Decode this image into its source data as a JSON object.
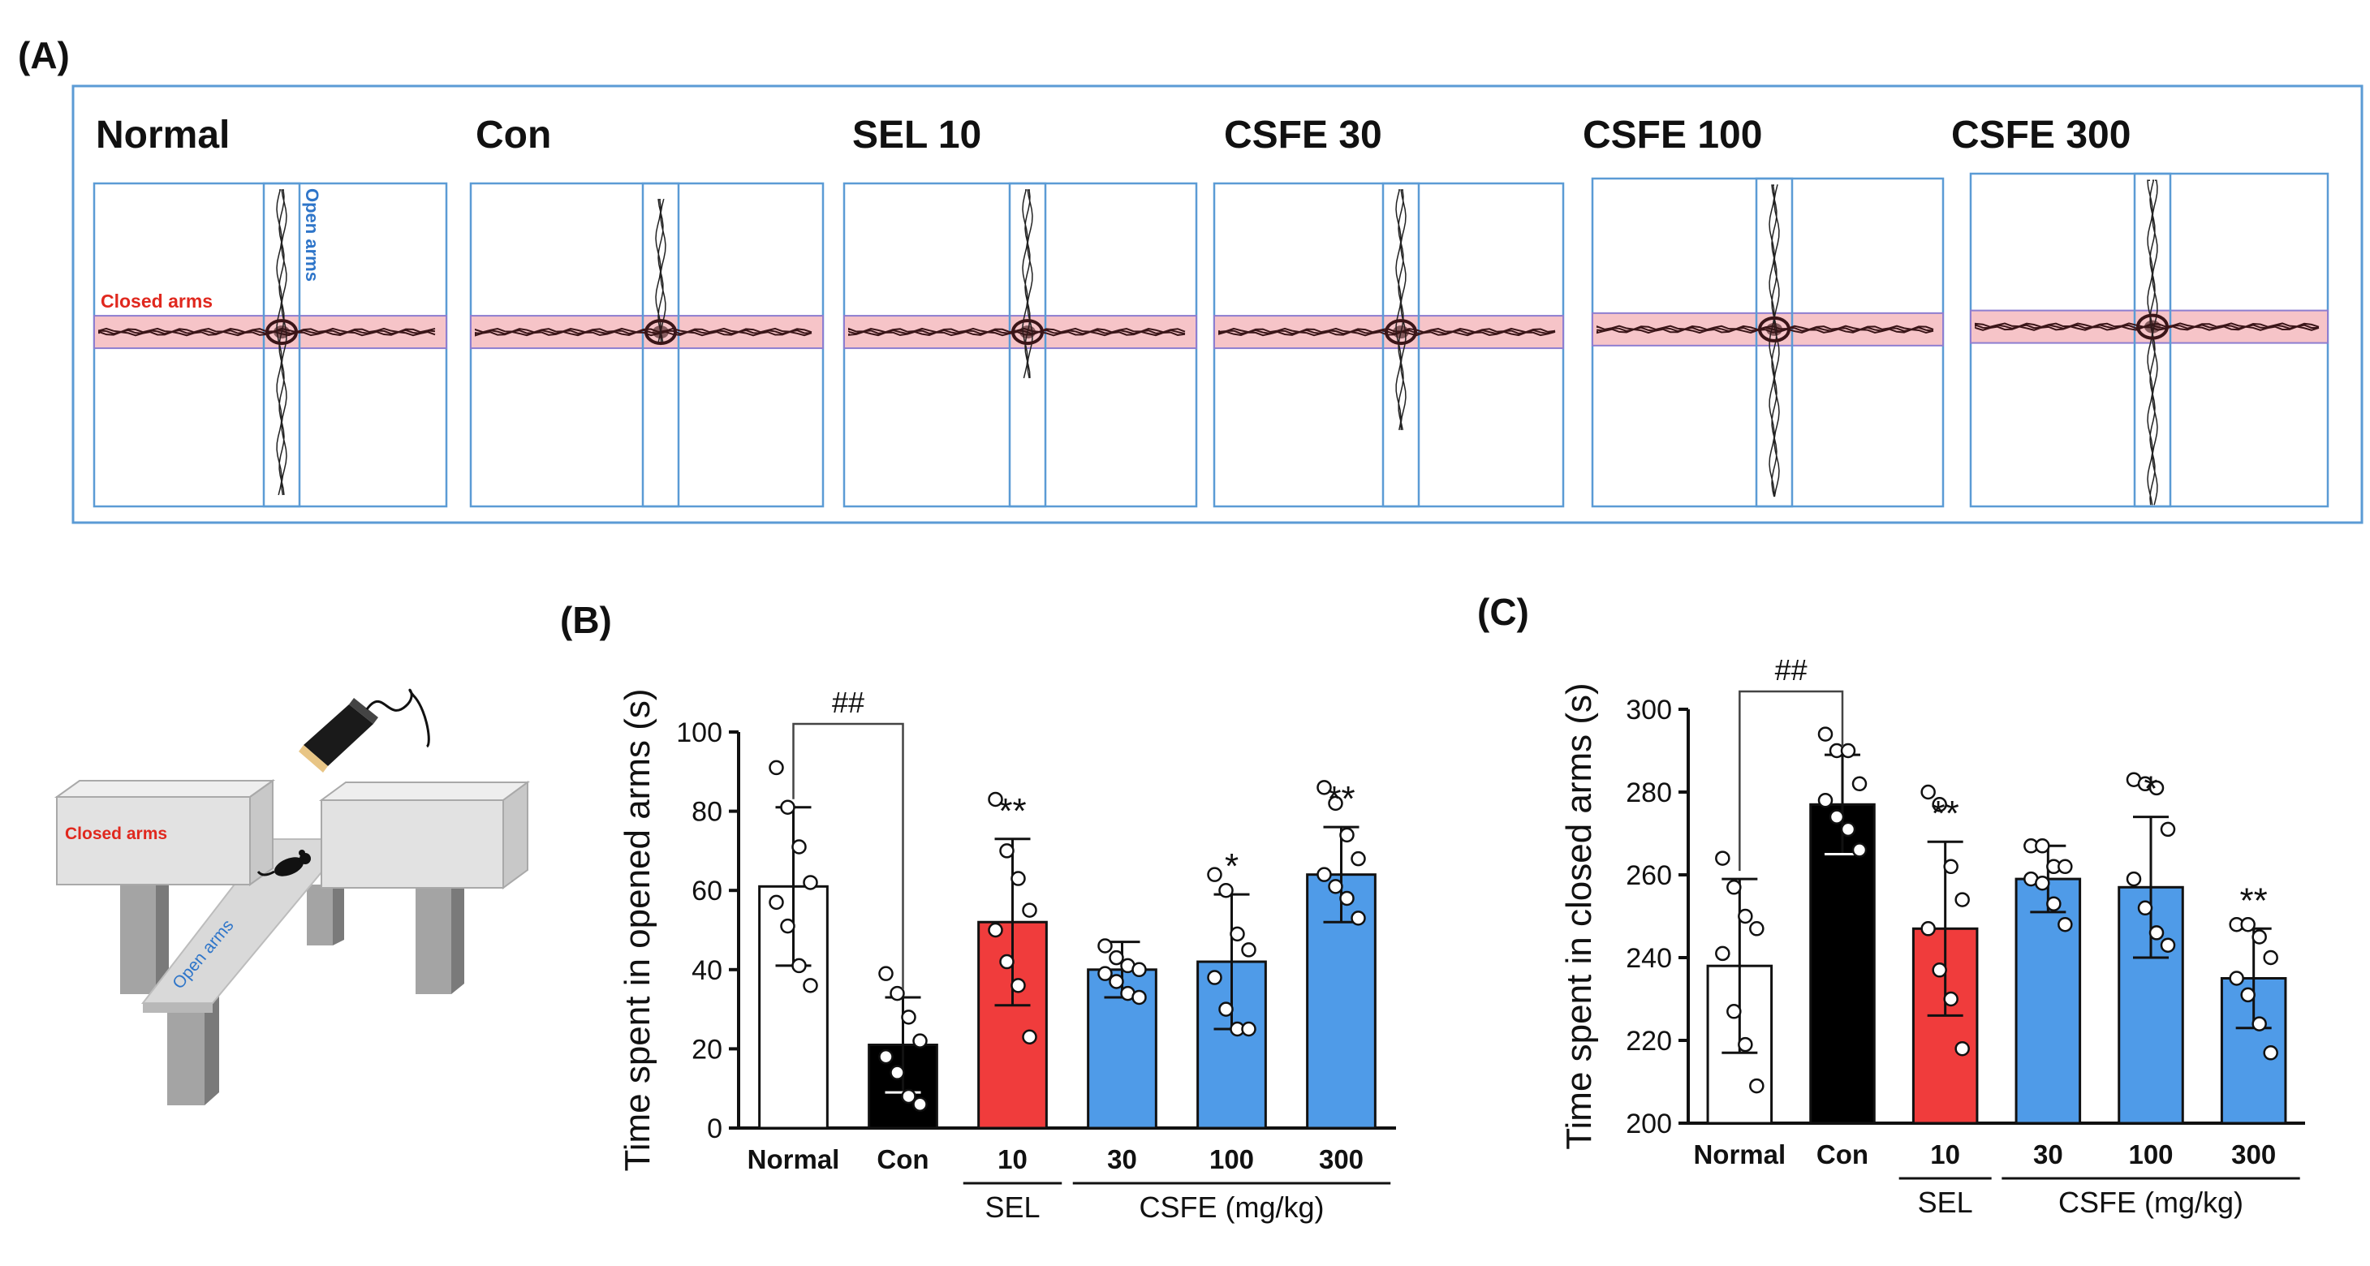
{
  "panel_a": {
    "label": "(A)",
    "track_titles": [
      "Normal",
      "Con",
      "SEL 10",
      "CSFE 30",
      "CSFE 100",
      "CSFE 300"
    ],
    "closed_arms_label": "Closed arms",
    "open_arms_label": "Open arms"
  },
  "apparatus": {
    "closed_arms_label": "Closed arms",
    "open_arms_label": "Open arms"
  },
  "chart_data": [
    {
      "panel_label": "(B)",
      "type": "bar",
      "title": "",
      "xlabel": "",
      "ylabel": "Time spent in opened arms (s)",
      "ylim": [
        0,
        100
      ],
      "yticks": [
        0,
        20,
        40,
        60,
        80,
        100
      ],
      "categories": [
        "Normal",
        "Con",
        "10",
        "30",
        "100",
        "300"
      ],
      "values": [
        61,
        21,
        52,
        40,
        42,
        64
      ],
      "errors": [
        20,
        12,
        21,
        7,
        17,
        12
      ],
      "fill_colors": [
        "#ffffff",
        "#000000",
        "#f03c3c",
        "#4f9be8",
        "#4f9be8",
        "#4f9be8"
      ],
      "significance": [
        "",
        "",
        "**",
        "",
        "*",
        "**"
      ],
      "bracket_label": "##",
      "group_labels": [
        {
          "label": "SEL",
          "from": 2,
          "to": 2
        },
        {
          "label": "CSFE (mg/kg)",
          "from": 3,
          "to": 5
        }
      ],
      "points": [
        [
          91,
          81,
          71,
          62,
          57,
          51,
          41,
          36
        ],
        [
          39,
          34,
          28,
          22,
          18,
          14,
          8,
          6
        ],
        [
          83,
          70,
          63,
          55,
          50,
          42,
          36,
          23
        ],
        [
          46,
          43,
          41,
          40,
          39,
          37,
          34,
          33
        ],
        [
          64,
          60,
          49,
          45,
          38,
          30,
          25,
          25
        ],
        [
          86,
          82,
          74,
          68,
          64,
          61,
          58,
          53
        ]
      ]
    },
    {
      "panel_label": "(C)",
      "type": "bar",
      "title": "",
      "xlabel": "",
      "ylabel": "Time spent in closed arms (s)",
      "ylim": [
        200,
        300
      ],
      "yticks": [
        200,
        220,
        240,
        260,
        280,
        300
      ],
      "categories": [
        "Normal",
        "Con",
        "10",
        "30",
        "100",
        "300"
      ],
      "values": [
        238,
        277,
        247,
        259,
        257,
        235
      ],
      "errors": [
        21,
        12,
        21,
        8,
        17,
        12
      ],
      "fill_colors": [
        "#ffffff",
        "#000000",
        "#f03c3c",
        "#4f9be8",
        "#4f9be8",
        "#4f9be8"
      ],
      "significance": [
        "",
        "",
        "**",
        "",
        "*",
        "**"
      ],
      "bracket_label": "##",
      "group_labels": [
        {
          "label": "SEL",
          "from": 2,
          "to": 2
        },
        {
          "label": "CSFE (mg/kg)",
          "from": 3,
          "to": 5
        }
      ],
      "points": [
        [
          264,
          257,
          250,
          247,
          241,
          227,
          219,
          209
        ],
        [
          294,
          290,
          290,
          282,
          278,
          274,
          271,
          266
        ],
        [
          280,
          277,
          262,
          254,
          247,
          237,
          230,
          218
        ],
        [
          267,
          267,
          262,
          262,
          259,
          258,
          253,
          248
        ],
        [
          283,
          282,
          281,
          271,
          259,
          252,
          246,
          243
        ],
        [
          248,
          248,
          245,
          240,
          235,
          231,
          224,
          217
        ]
      ]
    }
  ]
}
